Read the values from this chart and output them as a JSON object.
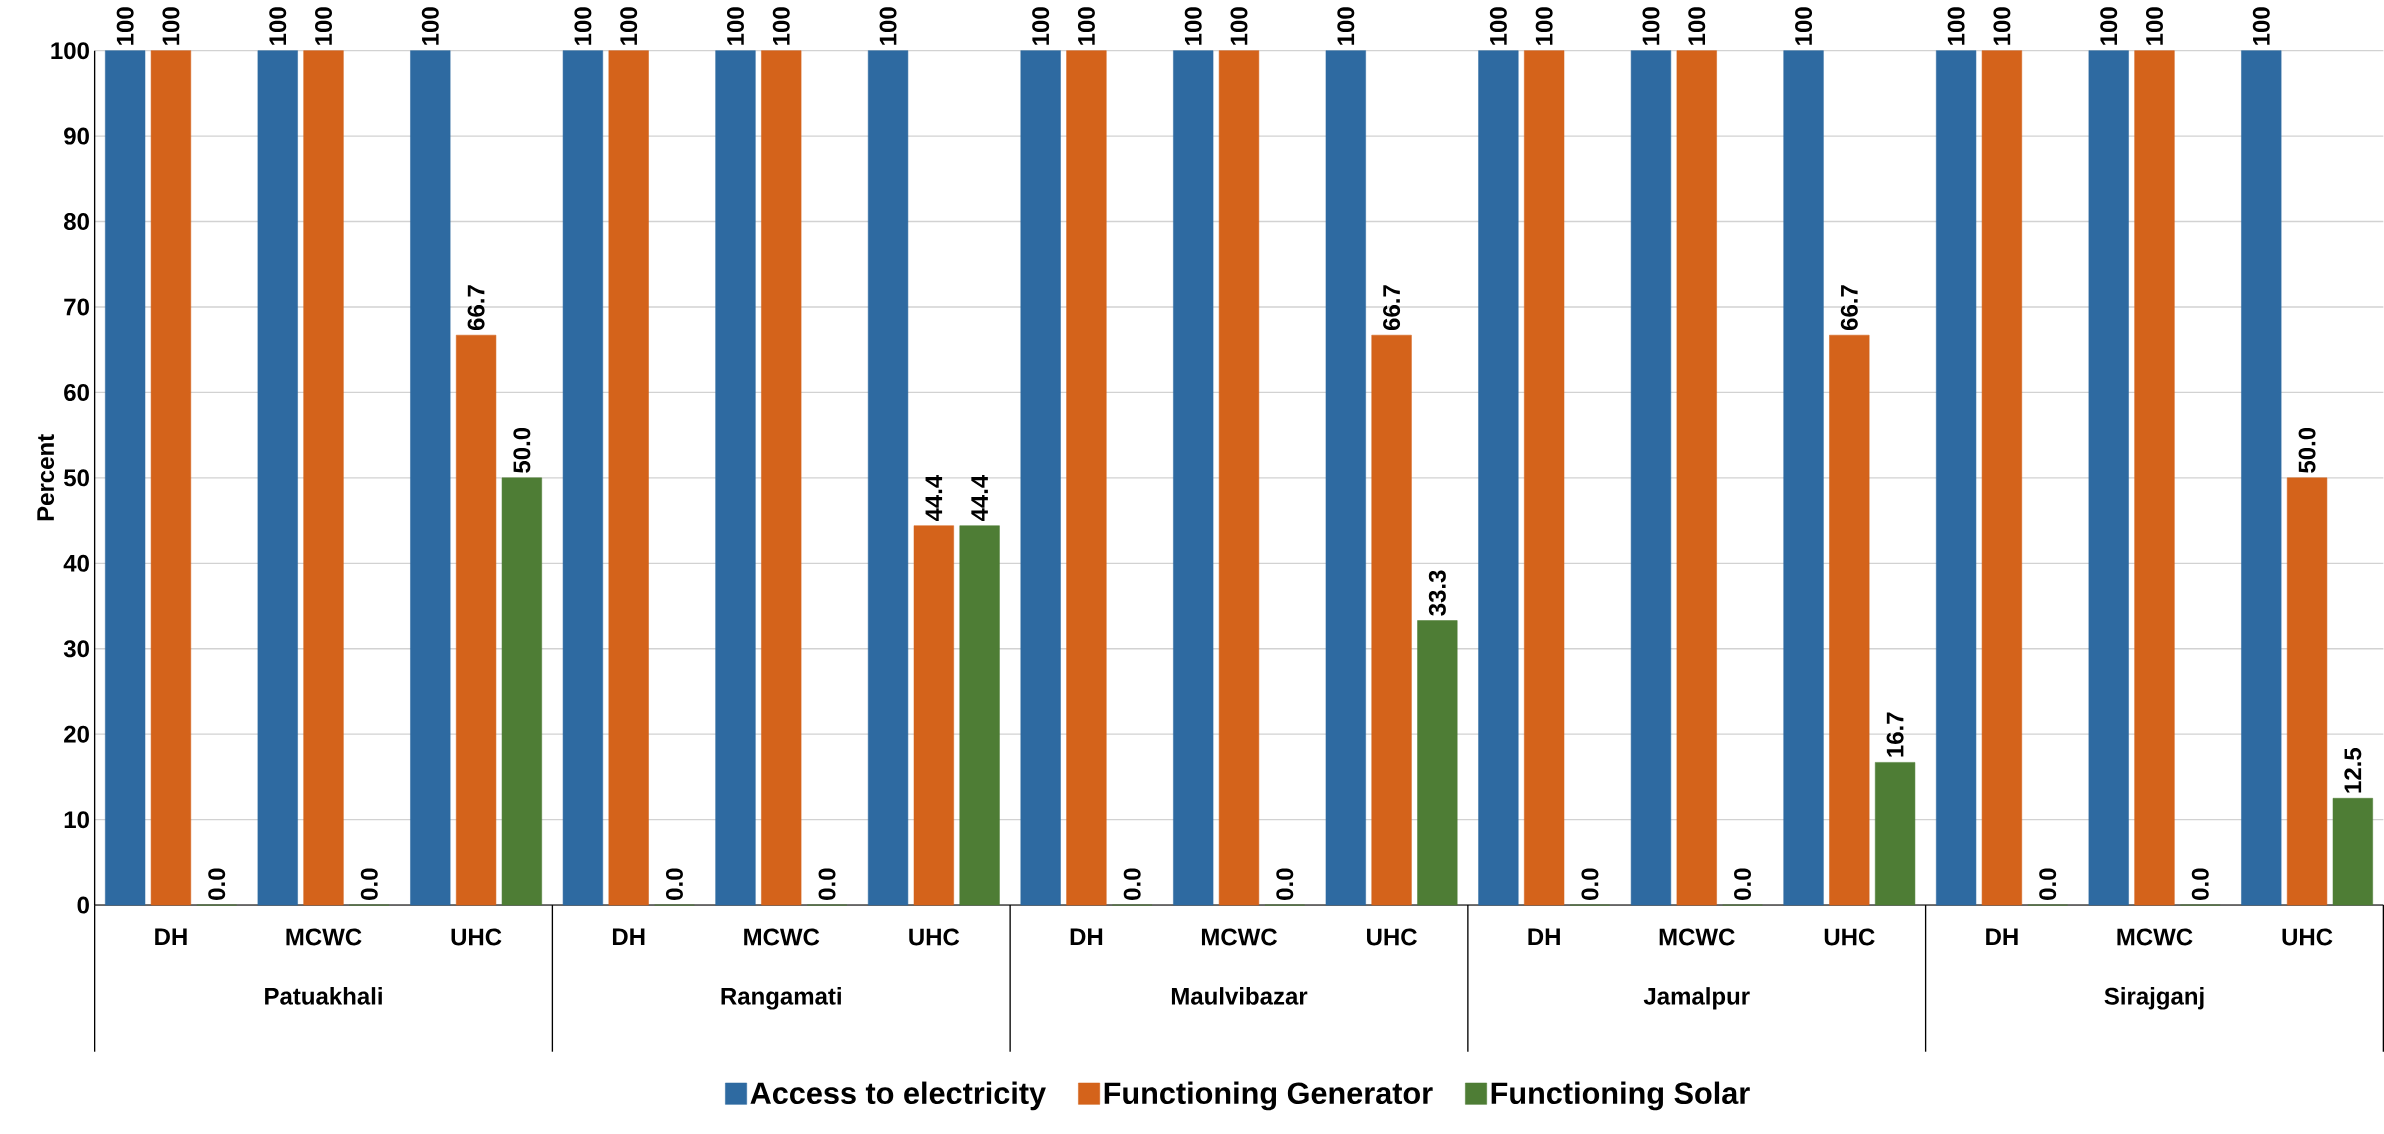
{
  "chart_data": {
    "type": "bar",
    "ylabel": "Percent",
    "categories": [
      "DH",
      "MCWC",
      "UHC",
      "DH",
      "MCWC",
      "UHC",
      "DH",
      "MCWC",
      "UHC",
      "DH",
      "MCWC",
      "UHC",
      "DH",
      "MCWC",
      "UHC"
    ],
    "annotations": [
      "Patuakhali",
      "Rangamati",
      "Maulvibazar",
      "Jamalpur",
      "Sirajganj"
    ],
    "series": [
      {
        "name": "Access to electricity",
        "color": "#2e6aa1",
        "values": [
          100,
          100,
          100,
          100,
          100,
          100,
          100,
          100,
          100,
          100,
          100,
          100,
          100,
          100,
          100
        ],
        "value_labels": [
          "100",
          "100",
          "100",
          "100",
          "100",
          "100",
          "100",
          "100",
          "100",
          "100",
          "100",
          "100",
          "100",
          "100",
          "100"
        ]
      },
      {
        "name": "Functioning Generator",
        "color": "#d4631b",
        "values": [
          100,
          100,
          66.7,
          100,
          100,
          44.4,
          100,
          100,
          66.7,
          100,
          100,
          66.7,
          100,
          100,
          50.0
        ],
        "value_labels": [
          "100",
          "100",
          "66.7",
          "100",
          "100",
          "44.4",
          "100",
          "100",
          "66.7",
          "100",
          "100",
          "66.7",
          "100",
          "100",
          "50.0"
        ]
      },
      {
        "name": "Functioning Solar",
        "color": "#4e7d35",
        "values": [
          0,
          0,
          50.0,
          0,
          0,
          44.4,
          0,
          0,
          33.3,
          0,
          0,
          16.7,
          0,
          0,
          12.5
        ],
        "value_labels": [
          "0.0",
          "0.0",
          "50.0",
          "0.0",
          "0.0",
          "44.4",
          "0.0",
          "0.0",
          "33.3",
          "0.0",
          "0.0",
          "16.7",
          "0.0",
          "0.0",
          "12.5"
        ]
      }
    ],
    "ylim": [
      0,
      100
    ],
    "yticks": [
      0,
      10,
      20,
      30,
      40,
      50,
      60,
      70,
      80,
      90,
      100
    ],
    "grid": "y",
    "legend": "bottom"
  }
}
